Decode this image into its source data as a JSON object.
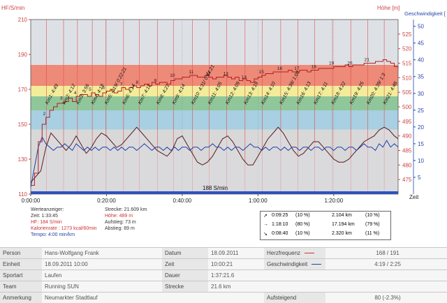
{
  "chart_data": {
    "type": "line",
    "left_axis_title": "HF/S/min",
    "right_axis_title_1": "Höhe [m]",
    "right_axis_title_2": "Geschwindigkeit [",
    "x_axis_title": "Zeit",
    "x_ticks": [
      "0:00:00",
      "0:20:00",
      "0:40:00",
      "1:00:00",
      "1:20:00"
    ],
    "x_tick_seconds": [
      0,
      1200,
      2400,
      3600,
      4800
    ],
    "x_range_seconds": [
      0,
      5820
    ],
    "hf_range": [
      110,
      210
    ],
    "hf_ticks": [
      110,
      130,
      150,
      170,
      190,
      210
    ],
    "hoehe_range": [
      470,
      530
    ],
    "hoehe_ticks": [
      475,
      480,
      485,
      490,
      495,
      500,
      505,
      510,
      515,
      520,
      525
    ],
    "speed_range": [
      0,
      52
    ],
    "speed_ticks": [
      5,
      10,
      15,
      20,
      25,
      30,
      35,
      40,
      45,
      50
    ],
    "zones": [
      {
        "from": 110,
        "to": 147,
        "color": "#d8d8d8"
      },
      {
        "from": 147,
        "to": 158,
        "color": "#a8cfe2"
      },
      {
        "from": 158,
        "to": 166,
        "color": "#8fc79a"
      },
      {
        "from": 166,
        "to": 172,
        "color": "#f3ec9a"
      },
      {
        "from": 172,
        "to": 184,
        "color": "#ee8a78"
      },
      {
        "from": 184,
        "to": 210,
        "color": "#dde1e6"
      }
    ],
    "km_markers": [
      {
        "t": 250,
        "label": "Km1: 4:49"
      },
      {
        "t": 520,
        "label": "Km2: 4:12"
      },
      {
        "t": 740,
        "label": "Km3: 3:56"
      },
      {
        "t": 975,
        "label": "Km4: 4:18"
      },
      {
        "t": 1190,
        "label": "Km5: 4:19/ 0:22:21"
      },
      {
        "t": 1470,
        "label": "Km6: 4:14"
      },
      {
        "t": 1720,
        "label": "Km7: 4:12"
      },
      {
        "t": 2010,
        "label": "Km8: 4:21"
      },
      {
        "t": 2260,
        "label": "Km9: 4:14"
      },
      {
        "t": 2560,
        "label": "Km10: 4:31/ 0:44:21"
      },
      {
        "t": 2825,
        "label": "Km11: 4:05"
      },
      {
        "t": 3105,
        "label": "Km12: 4:09"
      },
      {
        "t": 3395,
        "label": "Km13: 4:18"
      },
      {
        "t": 3670,
        "label": "Km14: 4:10"
      },
      {
        "t": 3960,
        "label": "Km15: 4:38/ 1:08"
      },
      {
        "t": 4230,
        "label": "Km16: 4:13"
      },
      {
        "t": 4500,
        "label": "Km17: 4:11"
      },
      {
        "t": 4780,
        "label": "Km18: 4:22"
      },
      {
        "t": 5070,
        "label": "Km19: 4:25"
      },
      {
        "t": 5340,
        "label": "Km20: 4:39/ 1:3"
      },
      {
        "t": 5600,
        "label": "Km21: 4:48"
      }
    ],
    "hf_series": [
      [
        0,
        115
      ],
      [
        60,
        122
      ],
      [
        120,
        140
      ],
      [
        180,
        150
      ],
      [
        240,
        154
      ],
      [
        300,
        158
      ],
      [
        360,
        160
      ],
      [
        420,
        162
      ],
      [
        480,
        162
      ],
      [
        540,
        163
      ],
      [
        600,
        165
      ],
      [
        660,
        163
      ],
      [
        720,
        166
      ],
      [
        780,
        167
      ],
      [
        840,
        167
      ],
      [
        900,
        166
      ],
      [
        960,
        168
      ],
      [
        1020,
        167
      ],
      [
        1080,
        166
      ],
      [
        1140,
        168
      ],
      [
        1200,
        169
      ],
      [
        1260,
        170
      ],
      [
        1320,
        168
      ],
      [
        1380,
        169
      ],
      [
        1440,
        171
      ],
      [
        1500,
        170
      ],
      [
        1560,
        171
      ],
      [
        1620,
        172
      ],
      [
        1680,
        171
      ],
      [
        1740,
        172
      ],
      [
        1800,
        173
      ],
      [
        1860,
        172
      ],
      [
        1920,
        174
      ],
      [
        1980,
        173
      ],
      [
        2040,
        174
      ],
      [
        2100,
        174
      ],
      [
        2160,
        173
      ],
      [
        2220,
        175
      ],
      [
        2280,
        176
      ],
      [
        2340,
        176
      ],
      [
        2400,
        177
      ],
      [
        2460,
        177
      ],
      [
        2520,
        178
      ],
      [
        2580,
        178
      ],
      [
        2640,
        177
      ],
      [
        2700,
        177
      ],
      [
        2760,
        178
      ],
      [
        2820,
        177
      ],
      [
        2880,
        176
      ],
      [
        2940,
        177
      ],
      [
        3000,
        177
      ],
      [
        3060,
        178
      ],
      [
        3120,
        177
      ],
      [
        3180,
        176
      ],
      [
        3240,
        177
      ],
      [
        3300,
        175
      ],
      [
        3360,
        176
      ],
      [
        3420,
        175
      ],
      [
        3480,
        174
      ],
      [
        3540,
        176
      ],
      [
        3600,
        177
      ],
      [
        3660,
        178
      ],
      [
        3720,
        179
      ],
      [
        3780,
        179
      ],
      [
        3840,
        180
      ],
      [
        3900,
        180
      ],
      [
        3960,
        180
      ],
      [
        4020,
        180
      ],
      [
        4080,
        181
      ],
      [
        4140,
        180
      ],
      [
        4200,
        180
      ],
      [
        4260,
        181
      ],
      [
        4320,
        181
      ],
      [
        4380,
        180
      ],
      [
        4440,
        181
      ],
      [
        4500,
        181
      ],
      [
        4560,
        182
      ],
      [
        4620,
        182
      ],
      [
        4680,
        182
      ],
      [
        4740,
        182
      ],
      [
        4800,
        183
      ],
      [
        4860,
        183
      ],
      [
        4920,
        183
      ],
      [
        4980,
        184
      ],
      [
        5040,
        183
      ],
      [
        5100,
        184
      ],
      [
        5160,
        184
      ],
      [
        5220,
        184
      ],
      [
        5280,
        185
      ],
      [
        5340,
        185
      ],
      [
        5400,
        185
      ],
      [
        5460,
        186
      ],
      [
        5520,
        186
      ],
      [
        5580,
        187
      ],
      [
        5640,
        186
      ],
      [
        5700,
        185
      ],
      [
        5760,
        183
      ],
      [
        5820,
        182
      ]
    ],
    "hoehe_series": [
      [
        0,
        474
      ],
      [
        80,
        476
      ],
      [
        160,
        478
      ],
      [
        240,
        486
      ],
      [
        320,
        491
      ],
      [
        400,
        489
      ],
      [
        480,
        487
      ],
      [
        560,
        485
      ],
      [
        640,
        487
      ],
      [
        720,
        490
      ],
      [
        800,
        487
      ],
      [
        880,
        484
      ],
      [
        960,
        486
      ],
      [
        1040,
        489
      ],
      [
        1120,
        491
      ],
      [
        1200,
        490
      ],
      [
        1280,
        488
      ],
      [
        1360,
        486
      ],
      [
        1440,
        487
      ],
      [
        1520,
        489
      ],
      [
        1600,
        491
      ],
      [
        1680,
        493
      ],
      [
        1760,
        491
      ],
      [
        1840,
        489
      ],
      [
        1920,
        487
      ],
      [
        2000,
        485
      ],
      [
        2080,
        484
      ],
      [
        2160,
        483
      ],
      [
        2240,
        485
      ],
      [
        2320,
        489
      ],
      [
        2400,
        490
      ],
      [
        2480,
        487
      ],
      [
        2560,
        484
      ],
      [
        2640,
        481
      ],
      [
        2720,
        480
      ],
      [
        2800,
        481
      ],
      [
        2880,
        483
      ],
      [
        2960,
        486
      ],
      [
        3040,
        489
      ],
      [
        3120,
        490
      ],
      [
        3200,
        488
      ],
      [
        3280,
        485
      ],
      [
        3360,
        482
      ],
      [
        3440,
        480
      ],
      [
        3520,
        480
      ],
      [
        3600,
        483
      ],
      [
        3680,
        486
      ],
      [
        3760,
        489
      ],
      [
        3840,
        491
      ],
      [
        3920,
        493
      ],
      [
        4000,
        491
      ],
      [
        4080,
        488
      ],
      [
        4160,
        485
      ],
      [
        4240,
        483
      ],
      [
        4320,
        484
      ],
      [
        4400,
        486
      ],
      [
        4480,
        488
      ],
      [
        4560,
        488
      ],
      [
        4640,
        486
      ],
      [
        4720,
        484
      ],
      [
        4800,
        482
      ],
      [
        4880,
        481
      ],
      [
        4960,
        481
      ],
      [
        5040,
        482
      ],
      [
        5120,
        484
      ],
      [
        5200,
        486
      ],
      [
        5280,
        488
      ],
      [
        5360,
        489
      ],
      [
        5440,
        490
      ],
      [
        5520,
        492
      ],
      [
        5600,
        493
      ],
      [
        5680,
        492
      ],
      [
        5760,
        490
      ],
      [
        5820,
        489
      ]
    ],
    "speed_series": [
      [
        0,
        2
      ],
      [
        60,
        8
      ],
      [
        120,
        14
      ],
      [
        180,
        17
      ],
      [
        240,
        15
      ],
      [
        300,
        14
      ],
      [
        360,
        13
      ],
      [
        420,
        14
      ],
      [
        480,
        14
      ],
      [
        540,
        15
      ],
      [
        600,
        14
      ],
      [
        660,
        13
      ],
      [
        720,
        15
      ],
      [
        780,
        14
      ],
      [
        840,
        13
      ],
      [
        900,
        14
      ],
      [
        960,
        13
      ],
      [
        1020,
        14
      ],
      [
        1080,
        13
      ],
      [
        1140,
        14
      ],
      [
        1200,
        14
      ],
      [
        1260,
        13
      ],
      [
        1320,
        14
      ],
      [
        1380,
        13
      ],
      [
        1440,
        14
      ],
      [
        1500,
        13
      ],
      [
        1560,
        14
      ],
      [
        1620,
        14
      ],
      [
        1680,
        13
      ],
      [
        1740,
        14
      ],
      [
        1800,
        15
      ],
      [
        1860,
        14
      ],
      [
        1920,
        13
      ],
      [
        1980,
        14
      ],
      [
        2040,
        14
      ],
      [
        2100,
        13
      ],
      [
        2160,
        14
      ],
      [
        2220,
        13
      ],
      [
        2280,
        14
      ],
      [
        2340,
        13
      ],
      [
        2400,
        14
      ],
      [
        2460,
        14
      ],
      [
        2520,
        13
      ],
      [
        2580,
        14
      ],
      [
        2640,
        14
      ],
      [
        2700,
        13
      ],
      [
        2760,
        14
      ],
      [
        2820,
        14
      ],
      [
        2880,
        15
      ],
      [
        2940,
        14
      ],
      [
        3000,
        14
      ],
      [
        3060,
        13
      ],
      [
        3120,
        14
      ],
      [
        3180,
        13
      ],
      [
        3240,
        14
      ],
      [
        3300,
        14
      ],
      [
        3360,
        13
      ],
      [
        3420,
        14
      ],
      [
        3480,
        15
      ],
      [
        3540,
        14
      ],
      [
        3600,
        14
      ],
      [
        3660,
        13
      ],
      [
        3720,
        14
      ],
      [
        3780,
        13
      ],
      [
        3840,
        14
      ],
      [
        3900,
        14
      ],
      [
        3960,
        13
      ],
      [
        4020,
        14
      ],
      [
        4080,
        13
      ],
      [
        4140,
        14
      ],
      [
        4200,
        14
      ],
      [
        4260,
        13
      ],
      [
        4320,
        14
      ],
      [
        4380,
        14
      ],
      [
        4440,
        13
      ],
      [
        4500,
        14
      ],
      [
        4560,
        14
      ],
      [
        4620,
        13
      ],
      [
        4680,
        14
      ],
      [
        4740,
        14
      ],
      [
        4800,
        13
      ],
      [
        4860,
        14
      ],
      [
        4920,
        14
      ],
      [
        4980,
        13
      ],
      [
        5040,
        14
      ],
      [
        5100,
        14
      ],
      [
        5160,
        13
      ],
      [
        5220,
        14
      ],
      [
        5280,
        15
      ],
      [
        5340,
        14
      ],
      [
        5400,
        14
      ],
      [
        5460,
        13
      ],
      [
        5520,
        15
      ],
      [
        5580,
        14
      ],
      [
        5640,
        16
      ],
      [
        5700,
        14
      ],
      [
        5760,
        15
      ],
      [
        5820,
        14
      ]
    ],
    "cadence_label": "188 S/min",
    "hf_label_numbers": [
      {
        "t": 250,
        "n": "2"
      },
      {
        "t": 520,
        "n": "3"
      },
      {
        "t": 740,
        "n": "4"
      },
      {
        "t": 975,
        "n": "5"
      },
      {
        "t": 1190,
        "n": "6"
      },
      {
        "t": 1470,
        "n": "7"
      },
      {
        "t": 1720,
        "n": "8"
      },
      {
        "t": 2010,
        "n": "9"
      },
      {
        "t": 2260,
        "n": "10"
      },
      {
        "t": 2560,
        "n": "11"
      },
      {
        "t": 2825,
        "n": "12"
      },
      {
        "t": 3105,
        "n": "13"
      },
      {
        "t": 3395,
        "n": "14"
      },
      {
        "t": 3670,
        "n": "15"
      },
      {
        "t": 3960,
        "n": "16"
      },
      {
        "t": 4230,
        "n": "17"
      },
      {
        "t": 4500,
        "n": "18"
      },
      {
        "t": 4780,
        "n": "19"
      },
      {
        "t": 5070,
        "n": "20"
      },
      {
        "t": 5340,
        "n": "21"
      }
    ]
  },
  "werte": {
    "title": "Werteanzeiger:",
    "zeit": "Zeit: 1:33:45",
    "hf": "HF: 184 S/min",
    "kalorien": "Kalorienrate : 1273 kcal/60min",
    "tempo": "Tempo: 4:00 min/km",
    "strecke": "Strecke: 21.609 km",
    "hoehe": "Höhe: 489 m",
    "aufstieg": "Aufstieg: 73 m",
    "abstieg": "Abstieg: 89 m"
  },
  "summary": [
    {
      "arrow": "↗",
      "time": "0:09:25",
      "pct1": "(10 %)",
      "dist": "2.104 km",
      "pct2": "(10 %)"
    },
    {
      "arrow": "→",
      "time": "1:18:10",
      "pct1": "(80 %)",
      "dist": "17.194 km",
      "pct2": "(79 %)"
    },
    {
      "arrow": "↘",
      "time": "0:08:40",
      "pct1": "(10 %)",
      "dist": "2.320 km",
      "pct2": "(11 %)"
    }
  ],
  "meta": {
    "person_label": "Person",
    "person": "Hans-Wolfgang Frank",
    "datum_label": "Datum",
    "datum": "18.09.2011",
    "hf_label": "Herzfrequenz",
    "hf": "168 / 191",
    "einheit_label": "Einheit",
    "einheit": "18.09.2011 10:00",
    "zeit_label": "Zeit",
    "zeit": "10:00:21",
    "speed_label": "Geschwindigkeit",
    "speed": "4:19 / 2:25",
    "sportart_label": "Sportart",
    "sportart": "Laufen",
    "dauer_label": "Dauer",
    "dauer": "1:37:21.6",
    "team_label": "Team",
    "team": "Running SUN",
    "strecke_label": "Strecke",
    "strecke": "21.6 km",
    "anmerkung_label": "Anmerkung",
    "anmerkung": "Neumarkter Stadtlauf",
    "aufsteigend_label": "Aufsteigend",
    "aufsteigend": "80 (-2.3%)"
  },
  "colors": {
    "hf": "#b02020",
    "hoehe": "#5a1a1a",
    "speed": "#1f3fa8",
    "km_line": "#e05050"
  }
}
